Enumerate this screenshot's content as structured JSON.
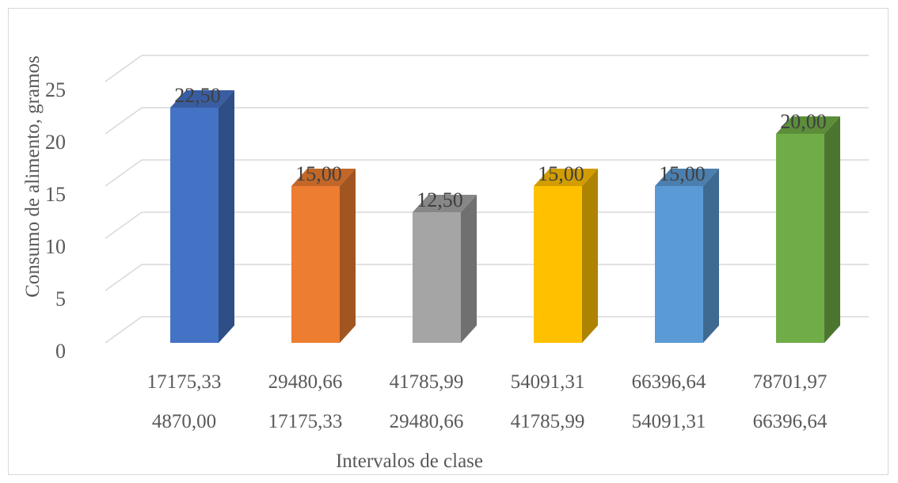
{
  "chart_data": {
    "type": "bar",
    "style": "3d-column",
    "categories": [
      [
        "17175,33",
        "4870,00"
      ],
      [
        "29480,66",
        "17175,33"
      ],
      [
        "41785,99",
        "29480,66"
      ],
      [
        "54091,31",
        "41785,99"
      ],
      [
        "66396,64",
        "54091,31"
      ],
      [
        "78701,97",
        "66396,64"
      ]
    ],
    "values": [
      22.5,
      15.0,
      12.5,
      15.0,
      15.0,
      20.0
    ],
    "value_labels": [
      "22,50",
      "15,00",
      "12,50",
      "15,00",
      "15,00",
      "20,00"
    ],
    "colors": [
      "#4472C4",
      "#ED7D31",
      "#A5A5A5",
      "#FFC000",
      "#5B9BD5",
      "#70AD47"
    ],
    "ylabel": "Consumo de alimento, gramos",
    "xlabel": "Intervalos de clase",
    "ylim": [
      0,
      25
    ],
    "yticks": [
      0,
      5,
      10,
      15,
      20,
      25
    ],
    "grid": true,
    "legend": "none"
  }
}
